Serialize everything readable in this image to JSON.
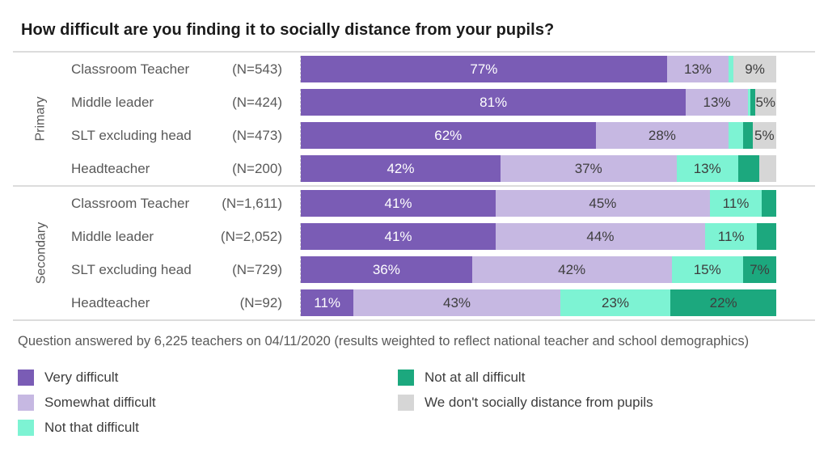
{
  "title": "How difficult are you finding it to socially distance from your pupils?",
  "footnote": "Question answered by 6,225 teachers on 04/11/2020 (results weighted to reflect national teacher and school demographics)",
  "colors": {
    "very_difficult": "#7a5cb5",
    "somewhat_difficult": "#c6b8e2",
    "not_that_difficult": "#7df3d3",
    "not_at_all_difficult": "#1ca87e",
    "no_distance": "#d6d6d6"
  },
  "legend": [
    {
      "label": "Very difficult",
      "color": "#7a5cb5"
    },
    {
      "label": "Somewhat difficult",
      "color": "#c6b8e2"
    },
    {
      "label": "Not that difficult",
      "color": "#7df3d3"
    },
    {
      "label": "Not at all difficult",
      "color": "#1ca87e"
    },
    {
      "label": "We don't socially distance from pupils",
      "color": "#d6d6d6"
    }
  ],
  "chart_data": {
    "type": "bar",
    "orientation": "horizontal-stacked",
    "value_unit": "percent",
    "axis_range": [
      0,
      100
    ],
    "grid": false,
    "legend_position": "bottom",
    "series_names": [
      "Very difficult",
      "Somewhat difficult",
      "Not that difficult",
      "Not at all difficult",
      "We don't socially distance from pupils"
    ],
    "groups": [
      {
        "label": "Primary",
        "rows": [
          {
            "role": "Classroom Teacher",
            "n": "(N=543)",
            "values": [
              77,
              13,
              1,
              0,
              9
            ],
            "labels": [
              "77%",
              "13%",
              "",
              "",
              "9%"
            ]
          },
          {
            "role": "Middle leader",
            "n": "(N=424)",
            "values": [
              81,
              13,
              0.5,
              1,
              4.5
            ],
            "labels": [
              "81%",
              "13%",
              "",
              "",
              "5%"
            ]
          },
          {
            "role": "SLT excluding head",
            "n": "(N=473)",
            "values": [
              62,
              28,
              3,
              2,
              5
            ],
            "labels": [
              "62%",
              "28%",
              "",
              "",
              "5%"
            ]
          },
          {
            "role": "Headteacher",
            "n": "(N=200)",
            "values": [
              42,
              37,
              13,
              4.5,
              3.5
            ],
            "labels": [
              "42%",
              "37%",
              "13%",
              "",
              ""
            ]
          }
        ]
      },
      {
        "label": "Secondary",
        "rows": [
          {
            "role": "Classroom Teacher",
            "n": "(N=1,611)",
            "values": [
              41,
              45,
              11,
              3,
              0
            ],
            "labels": [
              "41%",
              "45%",
              "11%",
              "",
              ""
            ]
          },
          {
            "role": "Middle leader",
            "n": "(N=2,052)",
            "values": [
              41,
              44,
              11,
              4,
              0
            ],
            "labels": [
              "41%",
              "44%",
              "11%",
              "",
              ""
            ]
          },
          {
            "role": "SLT excluding head",
            "n": "(N=729)",
            "values": [
              36,
              42,
              15,
              7,
              0
            ],
            "labels": [
              "36%",
              "42%",
              "15%",
              "7%",
              ""
            ]
          },
          {
            "role": "Headteacher",
            "n": "(N=92)",
            "values": [
              11,
              43,
              23,
              22,
              0
            ],
            "labels": [
              "11%",
              "43%",
              "23%",
              "22%",
              ""
            ]
          }
        ]
      }
    ]
  }
}
